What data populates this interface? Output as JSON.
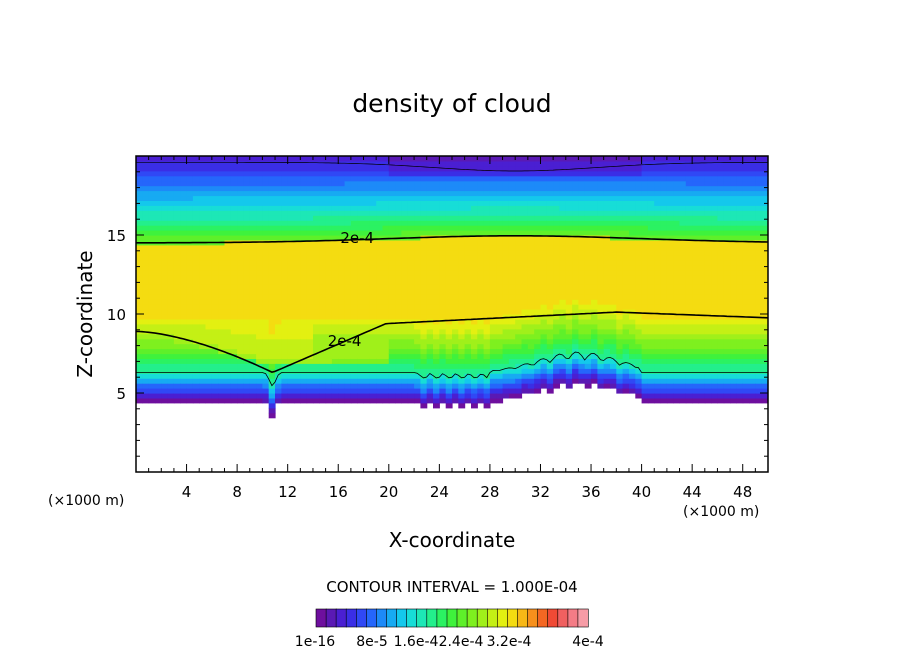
{
  "chart_data": {
    "type": "heatmap",
    "title": "density of cloud",
    "xlabel": "X-coordinate",
    "ylabel": "Z-coordinate",
    "x_unit": "(×1000 m)",
    "y_unit": "(×1000 m)",
    "xlim": [
      0,
      50
    ],
    "ylim": [
      0,
      20
    ],
    "x_ticks": [
      4,
      8,
      12,
      16,
      20,
      24,
      28,
      32,
      36,
      40,
      44,
      48
    ],
    "y_ticks": [
      5,
      10,
      15
    ],
    "x_tick_labels": [
      "4",
      "8",
      "12",
      "16",
      "20",
      "24",
      "28",
      "32",
      "36",
      "40",
      "44",
      "48"
    ],
    "y_tick_labels": [
      "5",
      "10",
      "15"
    ],
    "contour_interval_text": "CONTOUR INTERVAL = 1.000E-04",
    "contour_labels": [
      {
        "text": "2e-4",
        "x": 17.5,
        "y": 14.8
      },
      {
        "text": "2e-4",
        "x": 16.5,
        "y": 8.3
      }
    ],
    "colorbar": {
      "colors": [
        "#6e0f9e",
        "#5a19b4",
        "#4a1fd2",
        "#3a2ee6",
        "#3048f5",
        "#2566fb",
        "#1d8af8",
        "#17aaf2",
        "#14c8ec",
        "#17ddd7",
        "#1de7b6",
        "#23ef8c",
        "#2bf262",
        "#3ff23c",
        "#5ef02a",
        "#7ef01f",
        "#a0f01a",
        "#c4f015",
        "#e3f011",
        "#f4dc11",
        "#f7b816",
        "#f7901c",
        "#f46723",
        "#f04a35",
        "#f06060",
        "#f47c86",
        "#f69ca6"
      ],
      "labels": [
        "1e-16",
        "8e-5",
        "1.6e-4",
        "2.4e-4",
        "3.2e-4",
        "4e-4"
      ]
    },
    "cloud_base_km": 4.4,
    "cloud_top_km": 20,
    "density_max_approx": 0.00025
  }
}
